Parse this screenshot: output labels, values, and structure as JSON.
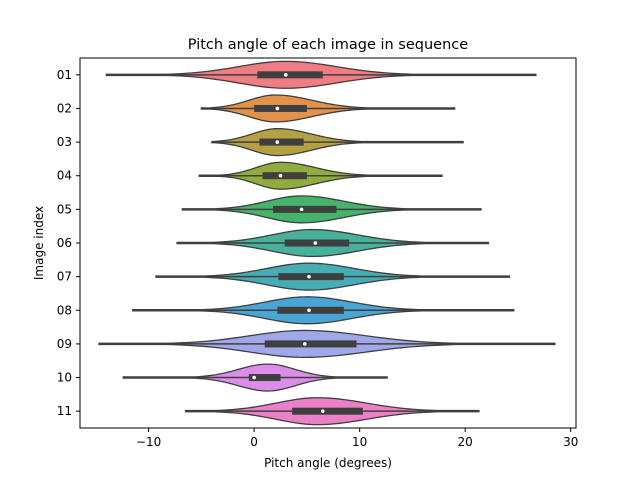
{
  "chart_data": {
    "type": "violin",
    "title": "Pitch angle of each image in sequence",
    "xlabel": "Pitch angle (degrees)",
    "ylabel": "Image index",
    "xlim": [
      -16.5,
      30.5
    ],
    "xticks": [
      -10,
      0,
      10,
      20,
      30
    ],
    "xtick_labels": [
      "−10",
      "0",
      "10",
      "20",
      "30"
    ],
    "grid": false,
    "legend": "none",
    "series": [
      {
        "category": "01",
        "color": "#f07c84",
        "min": -14,
        "max": 26.7,
        "q1": 0.3,
        "median": 3,
        "q3": 6.5,
        "peak": 3,
        "sd_left": 4.5,
        "sd_right": 4.8
      },
      {
        "category": "02",
        "color": "#e3924a",
        "min": -5,
        "max": 19,
        "q1": 0,
        "median": 2.2,
        "q3": 5,
        "peak": 2,
        "sd_left": 2.5,
        "sd_right": 3.5
      },
      {
        "category": "03",
        "color": "#b5a144",
        "min": -4,
        "max": 19.8,
        "q1": 0.5,
        "median": 2.2,
        "q3": 4.7,
        "peak": 2.2,
        "sd_left": 2.4,
        "sd_right": 3.2
      },
      {
        "category": "04",
        "color": "#91ab3d",
        "min": -5.2,
        "max": 17.8,
        "q1": 0.8,
        "median": 2.5,
        "q3": 5,
        "peak": 2.5,
        "sd_left": 2.3,
        "sd_right": 3.3
      },
      {
        "category": "05",
        "color": "#45b36b",
        "min": -6.8,
        "max": 21.5,
        "q1": 1.8,
        "median": 4.5,
        "q3": 7.8,
        "peak": 4.5,
        "sd_left": 3.3,
        "sd_right": 4
      },
      {
        "category": "06",
        "color": "#47b19c",
        "min": -7.3,
        "max": 22.2,
        "q1": 2.9,
        "median": 5.8,
        "q3": 9,
        "peak": 5.5,
        "sd_left": 3.8,
        "sd_right": 4.3
      },
      {
        "category": "07",
        "color": "#47adb4",
        "min": -9.3,
        "max": 24.2,
        "q1": 2.3,
        "median": 5.2,
        "q3": 8.5,
        "peak": 5.2,
        "sd_left": 4,
        "sd_right": 4.3
      },
      {
        "category": "08",
        "color": "#4ba5d4",
        "min": -11.5,
        "max": 24.6,
        "q1": 2.2,
        "median": 5.2,
        "q3": 8.5,
        "peak": 5,
        "sd_left": 4,
        "sd_right": 4.3
      },
      {
        "category": "09",
        "color": "#a0a8ea",
        "min": -14.7,
        "max": 28.5,
        "q1": 1,
        "median": 4.8,
        "q3": 9.7,
        "peak": 4.8,
        "sd_left": 5.2,
        "sd_right": 5.8
      },
      {
        "category": "10",
        "color": "#da8eea",
        "min": -12.4,
        "max": 12.6,
        "q1": -0.5,
        "median": 0,
        "q3": 2.5,
        "peak": 1.3,
        "sd_left": 2.8,
        "sd_right": 2.6
      },
      {
        "category": "11",
        "color": "#ec7fc8",
        "min": -6.5,
        "max": 21.3,
        "q1": 3.6,
        "median": 6.5,
        "q3": 10.3,
        "peak": 6,
        "sd_left": 3.9,
        "sd_right": 4.6
      }
    ]
  }
}
